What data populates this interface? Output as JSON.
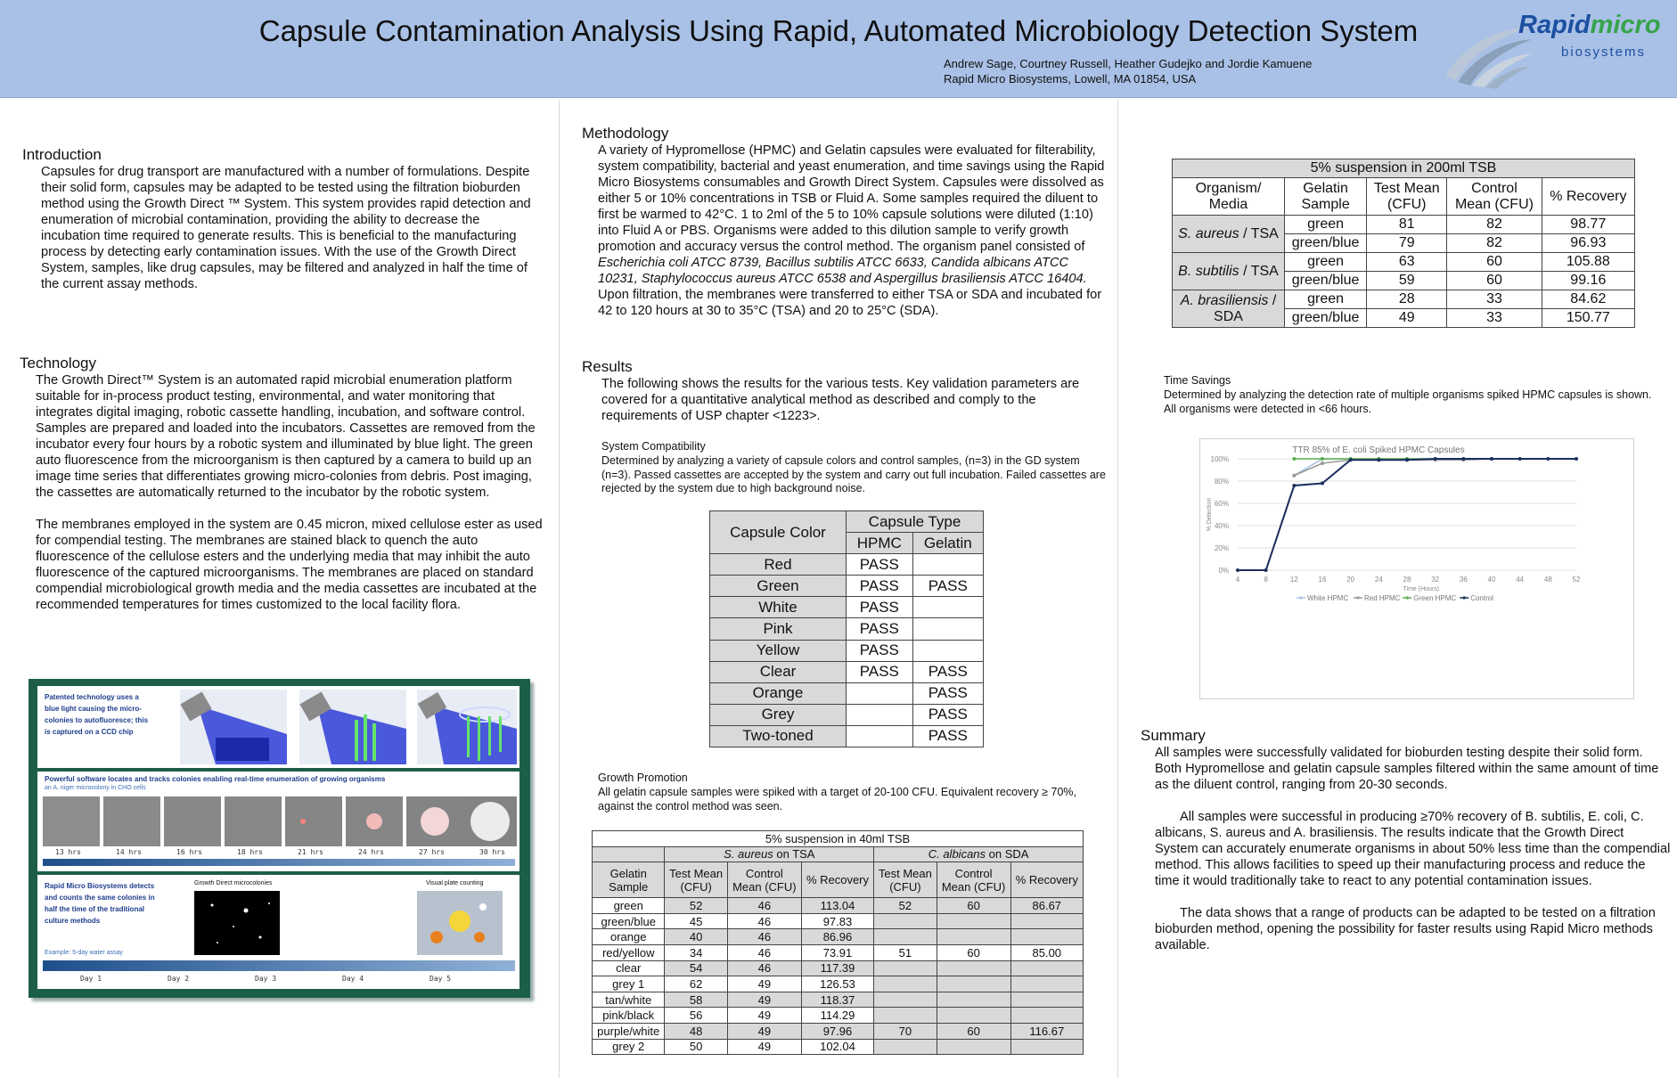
{
  "header": {
    "title": "Capsule Contamination Analysis Using Rapid, Automated Microbiology Detection System",
    "authors": "Andrew Sage, Courtney Russell, Heather Gudejko and Jordie Kamuene",
    "affiliation": "Rapid Micro Biosystems, Lowell, MA 01854, USA",
    "logo_word_a": "Rapid",
    "logo_word_b": "micro",
    "logo_sub": "biosystems"
  },
  "introduction": {
    "title": "Introduction",
    "lines": [
      "Capsules for drug transport are manufactured with a number of formulations. Despite",
      "their solid form, capsules may be adapted to be tested using the filtration bioburden",
      "method using the Growth Direct ™ System. This system provides rapid detection and",
      "enumeration of microbial contamination, providing  the ability to decrease the",
      "incubation time required to generate results. This is beneficial to the manufacturing",
      "process by detecting early contamination issues. With the use of the Growth Direct",
      "System, samples, like drug capsules, may be filtered and analyzed  in half the time of",
      "the current assay methods."
    ]
  },
  "technology": {
    "title": "Technology",
    "lines": [
      "The Growth Direct™ System is an automated rapid microbial enumeration platform",
      "suitable for in-process product testing, environmental, and water monitoring that",
      "integrates digital imaging, robotic cassette handling, incubation, and software control.",
      "Samples are prepared and loaded into the incubators. Cassettes are removed from the",
      "incubator every four hours by a robotic system and illuminated by blue light. The green",
      "auto fluorescence from the microorganism is then captured by a camera to build up an",
      "image time series that differentiates growing micro-colonies from debris. Post imaging,",
      "the cassettes are automatically returned to the incubator by the robotic system.",
      "",
      "The membranes employed in the system are 0.45 micron, mixed cellulose ester as used",
      "for compendial testing. The membranes are stained black to quench the auto",
      "fluorescence of the cellulose esters and the underlying media that may inhibit the auto",
      "fluorescence of the captured microorganisms. The membranes are placed on standard",
      "compendial microbiological growth media and the media cassettes are incubated at the",
      "recommended temperatures for times customized to the local facility flora."
    ]
  },
  "figure": {
    "panel1_text": [
      "Patented technology uses a",
      "blue light causing the micro-",
      "colonies to autofluoresce; this",
      "is captured on a CCD chip"
    ],
    "panel2_title": "Powerful software locates and tracks colonies enabling real-time enumeration of growing organisms",
    "panel2_sub": "an A. niger microcolony in CHO cells",
    "times": [
      "13 hrs",
      "14 hrs",
      "16 hrs",
      "18 hrs",
      "21 hrs",
      "24 hrs",
      "27 hrs",
      "30 hrs"
    ],
    "panel3_text": [
      "Rapid Micro Biosystems detects",
      "and counts the same colonies in",
      "half the time of the traditional",
      "culture methods"
    ],
    "panel3_label_a": "Growth Direct microcolonies",
    "panel3_label_b": "Visual plate counting",
    "panel3_example": "Example: 5-day water assay",
    "days": [
      "Day 1",
      "Day 2",
      "Day 3",
      "Day 4",
      "Day 5"
    ]
  },
  "methodology": {
    "title": "Methodology",
    "lines": [
      "A variety of Hypromellose (HPMC) and Gelatin capsules were evaluated for filterability,",
      "system compatibility, bacterial and yeast enumeration, and time savings using the Rapid",
      "Micro Biosystems consumables and Growth Direct System. Capsules were dissolved as",
      "either 5 or 10% concentrations in TSB or Fluid A. Some samples required the diluent to",
      "first be warmed to 42°C. 1 to 2ml of the 5 to 10%  capsule solutions were diluted (1:10)",
      "into Fluid A or PBS. Organisms were added to this dilution sample to verify growth",
      "promotion and accuracy versus the control method. The organism panel consisted of",
      "Escherichia coli ATCC 8739, Bacillus subtilis ATCC 6633, Candida albicans ATCC",
      "10231, Staphylococcus aureus ATCC 6538 and Aspergillus brasiliensis ATCC 16404.",
      "Upon filtration, the membranes were transferred to either TSA or SDA and incubated for",
      "42 to 120 hours at 30 to 35°C  (TSA) and 20 to 25°C (SDA)."
    ]
  },
  "results": {
    "title": "Results",
    "lines": [
      "The following shows the results for the various tests. Key validation parameters are",
      "covered for a quantitative analytical method as described and comply to the",
      "requirements of USP chapter <1223>."
    ]
  },
  "system_compatibility": {
    "title": "System Compatibility",
    "lines": [
      "Determined by analyzing a variety of capsule colors and control samples, (n=3) in the GD system",
      "(n=3). Passed cassettes are accepted by the system and carry out full incubation. Failed cassettes are",
      "rejected by the system due to high background noise."
    ],
    "table": {
      "col_color": "Capsule Color",
      "col_type": "Capsule Type",
      "col_hpmc": "HPMC",
      "col_gelatin": "Gelatin",
      "rows": [
        {
          "color": "Red",
          "hpmc": "PASS",
          "gelatin": ""
        },
        {
          "color": "Green",
          "hpmc": "PASS",
          "gelatin": "PASS"
        },
        {
          "color": "White",
          "hpmc": "PASS",
          "gelatin": ""
        },
        {
          "color": "Pink",
          "hpmc": "PASS",
          "gelatin": ""
        },
        {
          "color": "Yellow",
          "hpmc": "PASS",
          "gelatin": ""
        },
        {
          "color": "Clear",
          "hpmc": "PASS",
          "gelatin": "PASS"
        },
        {
          "color": "Orange",
          "hpmc": "",
          "gelatin": "PASS"
        },
        {
          "color": "Grey",
          "hpmc": "",
          "gelatin": "PASS"
        },
        {
          "color": "Two-toned",
          "hpmc": "",
          "gelatin": "PASS"
        }
      ]
    }
  },
  "growth_promotion": {
    "title": "Growth Promotion",
    "lines": [
      "All gelatin capsule samples were spiked with a target of 20-100 CFU. Equivalent recovery ≥ 70%,",
      "against the control method was seen."
    ],
    "table": {
      "caption": "5% suspension in 40ml TSB",
      "group_a": "S. aureus",
      "group_a_suffix": " on TSA",
      "group_b": "C. albicans",
      "group_b_suffix": " on SDA",
      "h_sample_1": "Gelatin",
      "h_sample_2": "Sample",
      "h_test_1": "Test Mean",
      "h_test_2": "(CFU)",
      "h_ctrl_1": "Control",
      "h_ctrl_2": "Mean (CFU)",
      "h_rec": "% Recovery",
      "rows": [
        {
          "sample": "green",
          "a_test": "52",
          "a_ctrl": "46",
          "a_rec": "113.04",
          "b_test": "52",
          "b_ctrl": "60",
          "b_rec": "86.67"
        },
        {
          "sample": "green/blue",
          "a_test": "45",
          "a_ctrl": "46",
          "a_rec": "97.83",
          "b_test": "",
          "b_ctrl": "",
          "b_rec": ""
        },
        {
          "sample": "orange",
          "a_test": "40",
          "a_ctrl": "46",
          "a_rec": "86.96",
          "b_test": "",
          "b_ctrl": "",
          "b_rec": ""
        },
        {
          "sample": "red/yellow",
          "a_test": "34",
          "a_ctrl": "46",
          "a_rec": "73.91",
          "b_test": "51",
          "b_ctrl": "60",
          "b_rec": "85.00"
        },
        {
          "sample": "clear",
          "a_test": "54",
          "a_ctrl": "46",
          "a_rec": "117.39",
          "b_test": "",
          "b_ctrl": "",
          "b_rec": ""
        },
        {
          "sample": "grey 1",
          "a_test": "62",
          "a_ctrl": "49",
          "a_rec": "126.53",
          "b_test": "",
          "b_ctrl": "",
          "b_rec": ""
        },
        {
          "sample": "tan/white",
          "a_test": "58",
          "a_ctrl": "49",
          "a_rec": "118.37",
          "b_test": "",
          "b_ctrl": "",
          "b_rec": ""
        },
        {
          "sample": "pink/black",
          "a_test": "56",
          "a_ctrl": "49",
          "a_rec": "114.29",
          "b_test": "",
          "b_ctrl": "",
          "b_rec": ""
        },
        {
          "sample": "purple/white",
          "a_test": "48",
          "a_ctrl": "49",
          "a_rec": "97.96",
          "b_test": "70",
          "b_ctrl": "60",
          "b_rec": "116.67"
        },
        {
          "sample": "grey 2",
          "a_test": "50",
          "a_ctrl": "49",
          "a_rec": "102.04",
          "b_test": "",
          "b_ctrl": "",
          "b_rec": ""
        }
      ]
    }
  },
  "suspension_table": {
    "caption": "5% suspension in 200ml TSB",
    "h_org_1": "Organism/",
    "h_org_2": "Media",
    "h_sample_1": "Gelatin",
    "h_sample_2": "Sample",
    "h_test_1": "Test Mean",
    "h_test_2": "(CFU)",
    "h_ctrl_1": "Control",
    "h_ctrl_2": "Mean (CFU)",
    "h_rec": "% Recovery",
    "groups": [
      {
        "organism": "S. aureus",
        "media": " / TSA",
        "rows": [
          {
            "sample": "green",
            "test": "81",
            "ctrl": "82",
            "rec": "98.77"
          },
          {
            "sample": "green/blue",
            "test": "79",
            "ctrl": "82",
            "rec": "96.93"
          }
        ]
      },
      {
        "organism": "B. subtilis",
        "media": " / TSA",
        "rows": [
          {
            "sample": "green",
            "test": "63",
            "ctrl": "60",
            "rec": "105.88"
          },
          {
            "sample": "green/blue",
            "test": "59",
            "ctrl": "60",
            "rec": "99.16"
          }
        ]
      },
      {
        "organism": "A. brasiliensis",
        "media": " /",
        "media_2": "SDA",
        "rows": [
          {
            "sample": "green",
            "test": "28",
            "ctrl": "33",
            "rec": "84.62"
          },
          {
            "sample": "green/blue",
            "test": "49",
            "ctrl": "33",
            "rec": "150.77"
          }
        ]
      }
    ]
  },
  "time_savings": {
    "title": "Time Savings",
    "lines": [
      "Determined by analyzing the detection rate of multiple organisms spiked HPMC capsules is shown.",
      "All organisms were detected in <66 hours."
    ]
  },
  "chart_data": {
    "type": "line",
    "title": "TTR 85% of E. coli Spiked HPMC Capsules",
    "xlabel": "Time (Hours)",
    "ylabel": "% Detection",
    "x": [
      4,
      8,
      12,
      16,
      20,
      24,
      28,
      32,
      36,
      40,
      44,
      48,
      52
    ],
    "x_ticks": [
      "4",
      "8",
      "12",
      "16",
      "20",
      "24",
      "28",
      "32",
      "36",
      "40",
      "44",
      "48",
      "52"
    ],
    "y_ticks": [
      "0%",
      "20%",
      "40%",
      "60%",
      "80%",
      "100%"
    ],
    "ylim": [
      0,
      100
    ],
    "grid": true,
    "legend": "bottom",
    "series": [
      {
        "name": "White HPMC",
        "color": "#a9c3e0",
        "values": [
          null,
          null,
          85,
          100,
          100,
          100,
          100,
          100,
          100,
          null,
          null,
          null,
          null
        ]
      },
      {
        "name": "Red HPMC",
        "color": "#9a9a9a",
        "values": [
          null,
          null,
          85,
          96,
          99,
          99,
          99,
          99,
          99,
          100,
          null,
          null,
          null
        ]
      },
      {
        "name": "Green HPMC",
        "color": "#5bb04f",
        "values": [
          null,
          null,
          100,
          100,
          100,
          100,
          100,
          100,
          null,
          null,
          null,
          null,
          null
        ]
      },
      {
        "name": "Control",
        "color": "#1b2f5e",
        "values": [
          0,
          0,
          76,
          78,
          99,
          99,
          99,
          100,
          100,
          100,
          100,
          100,
          100
        ]
      }
    ]
  },
  "summary": {
    "title": "Summary",
    "p1": [
      "All samples were successfully validated for bioburden testing despite their solid form.",
      "Both Hypromellose and gelatin capsule samples filtered within the same amount of time",
      "as the diluent control, ranging from 20-30 seconds."
    ],
    "p2": [
      "All samples were successful in producing ≥70% recovery of B. subtilis, E. coli, C.",
      "albicans, S. aureus and A. brasiliensis. The results indicate that the Growth Direct",
      "System can accurately enumerate organisms in about 50% less time than the compendial",
      "method. This allows facilities to speed up their manufacturing process and reduce the",
      "time it would traditionally take to react to any potential contamination issues."
    ],
    "p3": [
      "The data shows that a range of products can be adapted to be tested on a filtration",
      "bioburden method, opening the possibility for faster results using Rapid Micro methods",
      "available."
    ]
  }
}
